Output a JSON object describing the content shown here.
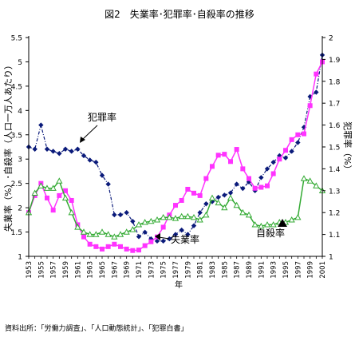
{
  "chart_data": {
    "type": "line",
    "title": "図2　失業率･犯罪率･自殺率の推移",
    "xlabel": "年",
    "ylabel_left": "失業率（%）･自殺率（人口一万人あたり）",
    "ylabel_right": "犯罪率（%）",
    "x": [
      1953,
      1954,
      1955,
      1956,
      1957,
      1958,
      1959,
      1960,
      1961,
      1962,
      1963,
      1964,
      1965,
      1966,
      1967,
      1968,
      1969,
      1970,
      1971,
      1972,
      1973,
      1974,
      1975,
      1976,
      1977,
      1978,
      1979,
      1980,
      1981,
      1982,
      1983,
      1984,
      1985,
      1986,
      1987,
      1988,
      1989,
      1990,
      1991,
      1992,
      1993,
      1994,
      1995,
      1996,
      1997,
      1998,
      1999,
      2000,
      2001
    ],
    "x_ticks": [
      1953,
      1955,
      1957,
      1959,
      1961,
      1963,
      1965,
      1967,
      1969,
      1971,
      1973,
      1975,
      1977,
      1979,
      1981,
      1983,
      1985,
      1987,
      1989,
      1991,
      1993,
      1995,
      1997,
      1999,
      2001
    ],
    "ylim_left": [
      1,
      5.5
    ],
    "yticks_left": [
      "1",
      "1.5",
      "2",
      "2.5",
      "3",
      "3.5",
      "4",
      "4.5",
      "5",
      "5.5"
    ],
    "ylim_right": [
      1,
      2
    ],
    "yticks_right": [
      "1",
      "1.1",
      "1.2",
      "1.3",
      "1.4",
      "1.5",
      "1.6",
      "1.7",
      "1.8",
      "1.9",
      "2"
    ],
    "series": [
      {
        "name": "犯罪率",
        "axis": "right",
        "color": "#0a1a7a",
        "marker": "diamond",
        "values": [
          1.5,
          1.49,
          1.6,
          1.49,
          1.48,
          1.47,
          1.49,
          1.48,
          1.49,
          1.46,
          1.44,
          1.43,
          1.37,
          1.33,
          1.19,
          1.19,
          1.2,
          1.16,
          1.09,
          1.11,
          1.08,
          1.07,
          1.07,
          1.08,
          1.1,
          1.12,
          1.1,
          1.14,
          1.2,
          1.24,
          1.25,
          1.27,
          1.28,
          1.29,
          1.33,
          1.31,
          1.34,
          1.3,
          1.36,
          1.4,
          1.43,
          1.46,
          1.45,
          1.48,
          1.52,
          1.59,
          1.73,
          1.75,
          1.92
        ]
      },
      {
        "name": "自殺率",
        "axis": "left",
        "color": "#ff33ff",
        "marker": "square",
        "values": [
          1.9,
          2.25,
          2.5,
          2.2,
          1.95,
          2.25,
          2.35,
          2.15,
          1.65,
          1.4,
          1.25,
          1.2,
          1.15,
          1.2,
          1.25,
          1.2,
          1.15,
          1.12,
          1.13,
          1.22,
          1.3,
          1.4,
          1.6,
          1.85,
          2.05,
          2.15,
          2.38,
          2.3,
          2.25,
          2.6,
          2.85,
          3.08,
          3.1,
          2.95,
          3.2,
          2.8,
          2.6,
          2.4,
          2.42,
          2.45,
          2.7,
          3,
          3.18,
          3.4,
          3.5,
          3.52,
          4.1,
          4.75,
          5
        ]
      },
      {
        "name": "失業率",
        "axis": "left",
        "color": "#33aa33",
        "marker": "triangle",
        "values": [
          1.9,
          2.3,
          2.45,
          2.4,
          2.4,
          2.55,
          2.2,
          1.9,
          1.6,
          1.5,
          1.45,
          1.45,
          1.5,
          1.45,
          1.4,
          1.45,
          1.5,
          1.55,
          1.65,
          1.7,
          1.72,
          1.75,
          1.8,
          1.8,
          1.78,
          1.82,
          1.82,
          1.8,
          1.75,
          1.85,
          2.2,
          2.1,
          2,
          2.2,
          2.05,
          1.9,
          1.85,
          1.65,
          1.62,
          1.65,
          1.65,
          1.7,
          1.7,
          1.75,
          1.8,
          2.6,
          2.55,
          2.45,
          2.35
        ]
      }
    ],
    "annotations": [
      {
        "text": "犯罪率",
        "series": "犯罪率"
      },
      {
        "text": "失業率",
        "series": "失業率"
      },
      {
        "text": "自殺率",
        "series": "自殺率"
      }
    ]
  },
  "source_note": "資料出所：｢労働力調査｣、｢人口動態統計｣、｢犯罪白書｣"
}
